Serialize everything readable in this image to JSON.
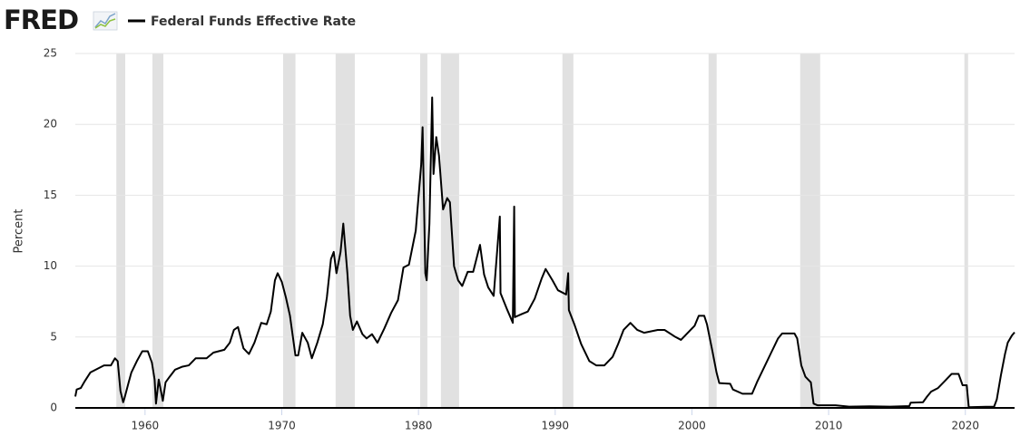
{
  "chart_data": {
    "type": "line",
    "logo": "FRED",
    "ylabel": "Percent",
    "xlim": [
      1954.9,
      2023.6
    ],
    "ylim": [
      0,
      25
    ],
    "xticks": [
      1960,
      1970,
      1980,
      1990,
      2000,
      2010,
      2020
    ],
    "yticks": [
      0,
      5,
      10,
      15,
      20,
      25
    ],
    "grid": true,
    "recession_color": "#e1e1e1",
    "recessions": [
      [
        1957.9,
        1958.55
      ],
      [
        1960.54,
        1961.34
      ],
      [
        1970.1,
        1971.0
      ],
      [
        1973.94,
        1975.34
      ],
      [
        1980.12,
        1980.65
      ],
      [
        1981.64,
        1982.97
      ],
      [
        1990.53,
        1991.33
      ],
      [
        2001.22,
        2001.81
      ],
      [
        2007.92,
        2009.38
      ],
      [
        2019.93,
        2020.2
      ]
    ],
    "x": [
      1954.9,
      1955.0,
      1955.3,
      1955.6,
      1956.0,
      1956.5,
      1957.0,
      1957.5,
      1957.8,
      1958.0,
      1958.2,
      1958.4,
      1958.5,
      1958.8,
      1959.0,
      1959.4,
      1959.8,
      1960.2,
      1960.5,
      1960.7,
      1960.8,
      1961.0,
      1961.2,
      1961.3,
      1961.5,
      1961.8,
      1962.2,
      1962.7,
      1963.2,
      1963.7,
      1964.5,
      1965.0,
      1965.8,
      1966.2,
      1966.5,
      1966.8,
      1967.2,
      1967.6,
      1968.0,
      1968.5,
      1968.9,
      1969.2,
      1969.5,
      1969.7,
      1970.0,
      1970.3,
      1970.6,
      1971.0,
      1971.2,
      1971.5,
      1971.9,
      1972.2,
      1972.6,
      1973.0,
      1973.3,
      1973.6,
      1973.8,
      1974.0,
      1974.3,
      1974.5,
      1974.8,
      1975.0,
      1975.2,
      1975.5,
      1975.9,
      1976.2,
      1976.6,
      1977.0,
      1977.5,
      1978.0,
      1978.5,
      1978.9,
      1979.3,
      1979.8,
      1980.2,
      1980.3,
      1980.5,
      1980.6,
      1980.8,
      1981.0,
      1981.1,
      1981.3,
      1981.5,
      1981.8,
      1982.1,
      1982.3,
      1982.6,
      1982.9,
      1983.2,
      1983.6,
      1984.0,
      1984.5,
      1984.8,
      1985.1,
      1985.5,
      1985.95,
      1986.0,
      1986.5,
      1986.9,
      1987.0,
      1987.05,
      1987.5,
      1988.0,
      1988.5,
      1989.0,
      1989.3,
      1989.8,
      1990.2,
      1990.8,
      1990.95,
      1991.0,
      1991.4,
      1991.9,
      1992.5,
      1993.0,
      1993.6,
      1994.2,
      1994.6,
      1995.0,
      1995.5,
      1996.0,
      1996.5,
      1997.5,
      1998.0,
      1998.8,
      1999.2,
      1999.8,
      2000.2,
      2000.5,
      2000.9,
      2001.1,
      2001.5,
      2001.8,
      2002.0,
      2002.8,
      2003.0,
      2003.7,
      2004.4,
      2004.8,
      2005.3,
      2005.8,
      2006.3,
      2006.6,
      2007.5,
      2007.7,
      2008.0,
      2008.3,
      2008.7,
      2008.9,
      2009.2,
      2010.5,
      2011.5,
      2013.0,
      2014.5,
      2015.9,
      2016.0,
      2016.9,
      2017.2,
      2017.5,
      2018.0,
      2018.5,
      2019.0,
      2019.5,
      2019.8,
      2020.1,
      2020.25,
      2021.5,
      2022.1,
      2022.3,
      2022.6,
      2022.9,
      2023.1,
      2023.4,
      2023.6
    ],
    "series": [
      {
        "name": "Federal Funds Effective Rate",
        "color": "#000000",
        "values": [
          0.8,
          1.3,
          1.4,
          1.9,
          2.5,
          2.75,
          3.0,
          3.0,
          3.5,
          3.3,
          1.2,
          0.4,
          0.7,
          1.8,
          2.5,
          3.3,
          4.0,
          4.0,
          3.2,
          2.0,
          0.3,
          2.0,
          1.0,
          0.5,
          1.8,
          2.2,
          2.7,
          2.9,
          3.0,
          3.5,
          3.5,
          3.9,
          4.1,
          4.6,
          5.5,
          5.7,
          4.2,
          3.8,
          4.6,
          6.0,
          5.9,
          6.8,
          9.0,
          9.5,
          8.9,
          7.8,
          6.5,
          3.7,
          3.7,
          5.3,
          4.6,
          3.5,
          4.6,
          5.9,
          7.8,
          10.5,
          11.0,
          9.5,
          11.0,
          13.0,
          9.5,
          6.5,
          5.5,
          6.1,
          5.2,
          4.9,
          5.2,
          4.6,
          5.6,
          6.7,
          7.6,
          9.9,
          10.1,
          12.5,
          17.2,
          19.8,
          9.5,
          9.0,
          13.0,
          21.9,
          16.5,
          19.1,
          17.8,
          14.0,
          14.8,
          14.5,
          10.0,
          9.0,
          8.6,
          9.6,
          9.6,
          11.5,
          9.4,
          8.5,
          7.9,
          13.5,
          8.1,
          6.9,
          6.0,
          14.2,
          6.4,
          6.6,
          6.8,
          7.7,
          9.1,
          9.8,
          9.0,
          8.3,
          8.0,
          9.5,
          6.9,
          5.9,
          4.5,
          3.3,
          3.0,
          3.0,
          3.6,
          4.5,
          5.5,
          6.0,
          5.5,
          5.3,
          5.5,
          5.5,
          5.0,
          4.8,
          5.4,
          5.8,
          6.5,
          6.5,
          5.9,
          4.0,
          2.5,
          1.75,
          1.7,
          1.3,
          1.0,
          1.0,
          1.9,
          2.9,
          3.9,
          4.9,
          5.25,
          5.25,
          4.9,
          3.0,
          2.2,
          1.8,
          0.3,
          0.18,
          0.18,
          0.09,
          0.11,
          0.09,
          0.13,
          0.37,
          0.4,
          0.8,
          1.15,
          1.4,
          1.9,
          2.4,
          2.4,
          1.6,
          1.6,
          0.05,
          0.08,
          0.08,
          0.6,
          2.3,
          3.8,
          4.6,
          5.1,
          5.33
        ]
      }
    ]
  }
}
